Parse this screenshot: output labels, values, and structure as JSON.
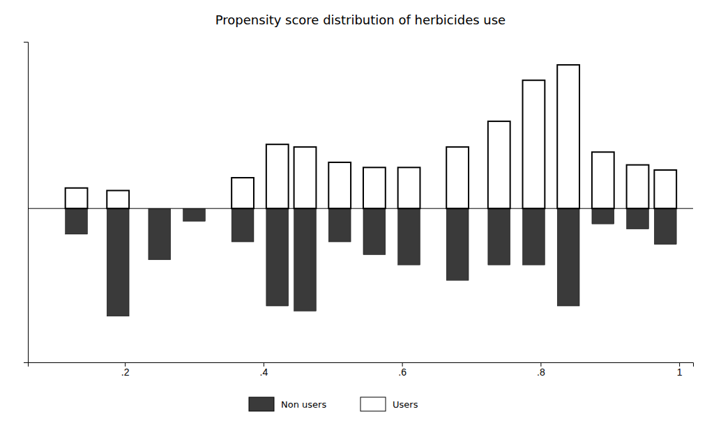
{
  "chart_data": {
    "type": "bar",
    "title": "Propensity score distribution of herbicides use",
    "x": [
      0.13,
      0.19,
      0.25,
      0.3,
      0.37,
      0.42,
      0.46,
      0.51,
      0.56,
      0.61,
      0.68,
      0.74,
      0.79,
      0.84,
      0.89,
      0.94,
      0.98
    ],
    "series": [
      {
        "name": "Non users",
        "color": "#3a3a3a",
        "values": [
          -0.1,
          -0.42,
          -0.2,
          -0.05,
          -0.13,
          -0.38,
          -0.4,
          -0.13,
          -0.18,
          -0.22,
          -0.28,
          -0.22,
          -0.22,
          -0.38,
          -0.06,
          -0.08,
          -0.14
        ]
      },
      {
        "name": "Users",
        "color": "#ffffff",
        "values": [
          0.08,
          0.07,
          0.0,
          0.0,
          0.12,
          0.25,
          0.24,
          0.18,
          0.16,
          0.16,
          0.24,
          0.34,
          0.5,
          0.56,
          0.22,
          0.17,
          0.15
        ]
      }
    ],
    "xlim": [
      0.06,
      1.02
    ],
    "xticks": [
      {
        "value": 0.2,
        "label": ".2"
      },
      {
        "value": 0.4,
        "label": ".4"
      },
      {
        "value": 0.6,
        "label": ".6"
      },
      {
        "value": 0.8,
        "label": ".8"
      },
      {
        "value": 1,
        "label": "1"
      }
    ],
    "ylim": [
      -0.6,
      0.65
    ],
    "tick_labels": "x",
    "grid": false,
    "legend": "bottom"
  }
}
